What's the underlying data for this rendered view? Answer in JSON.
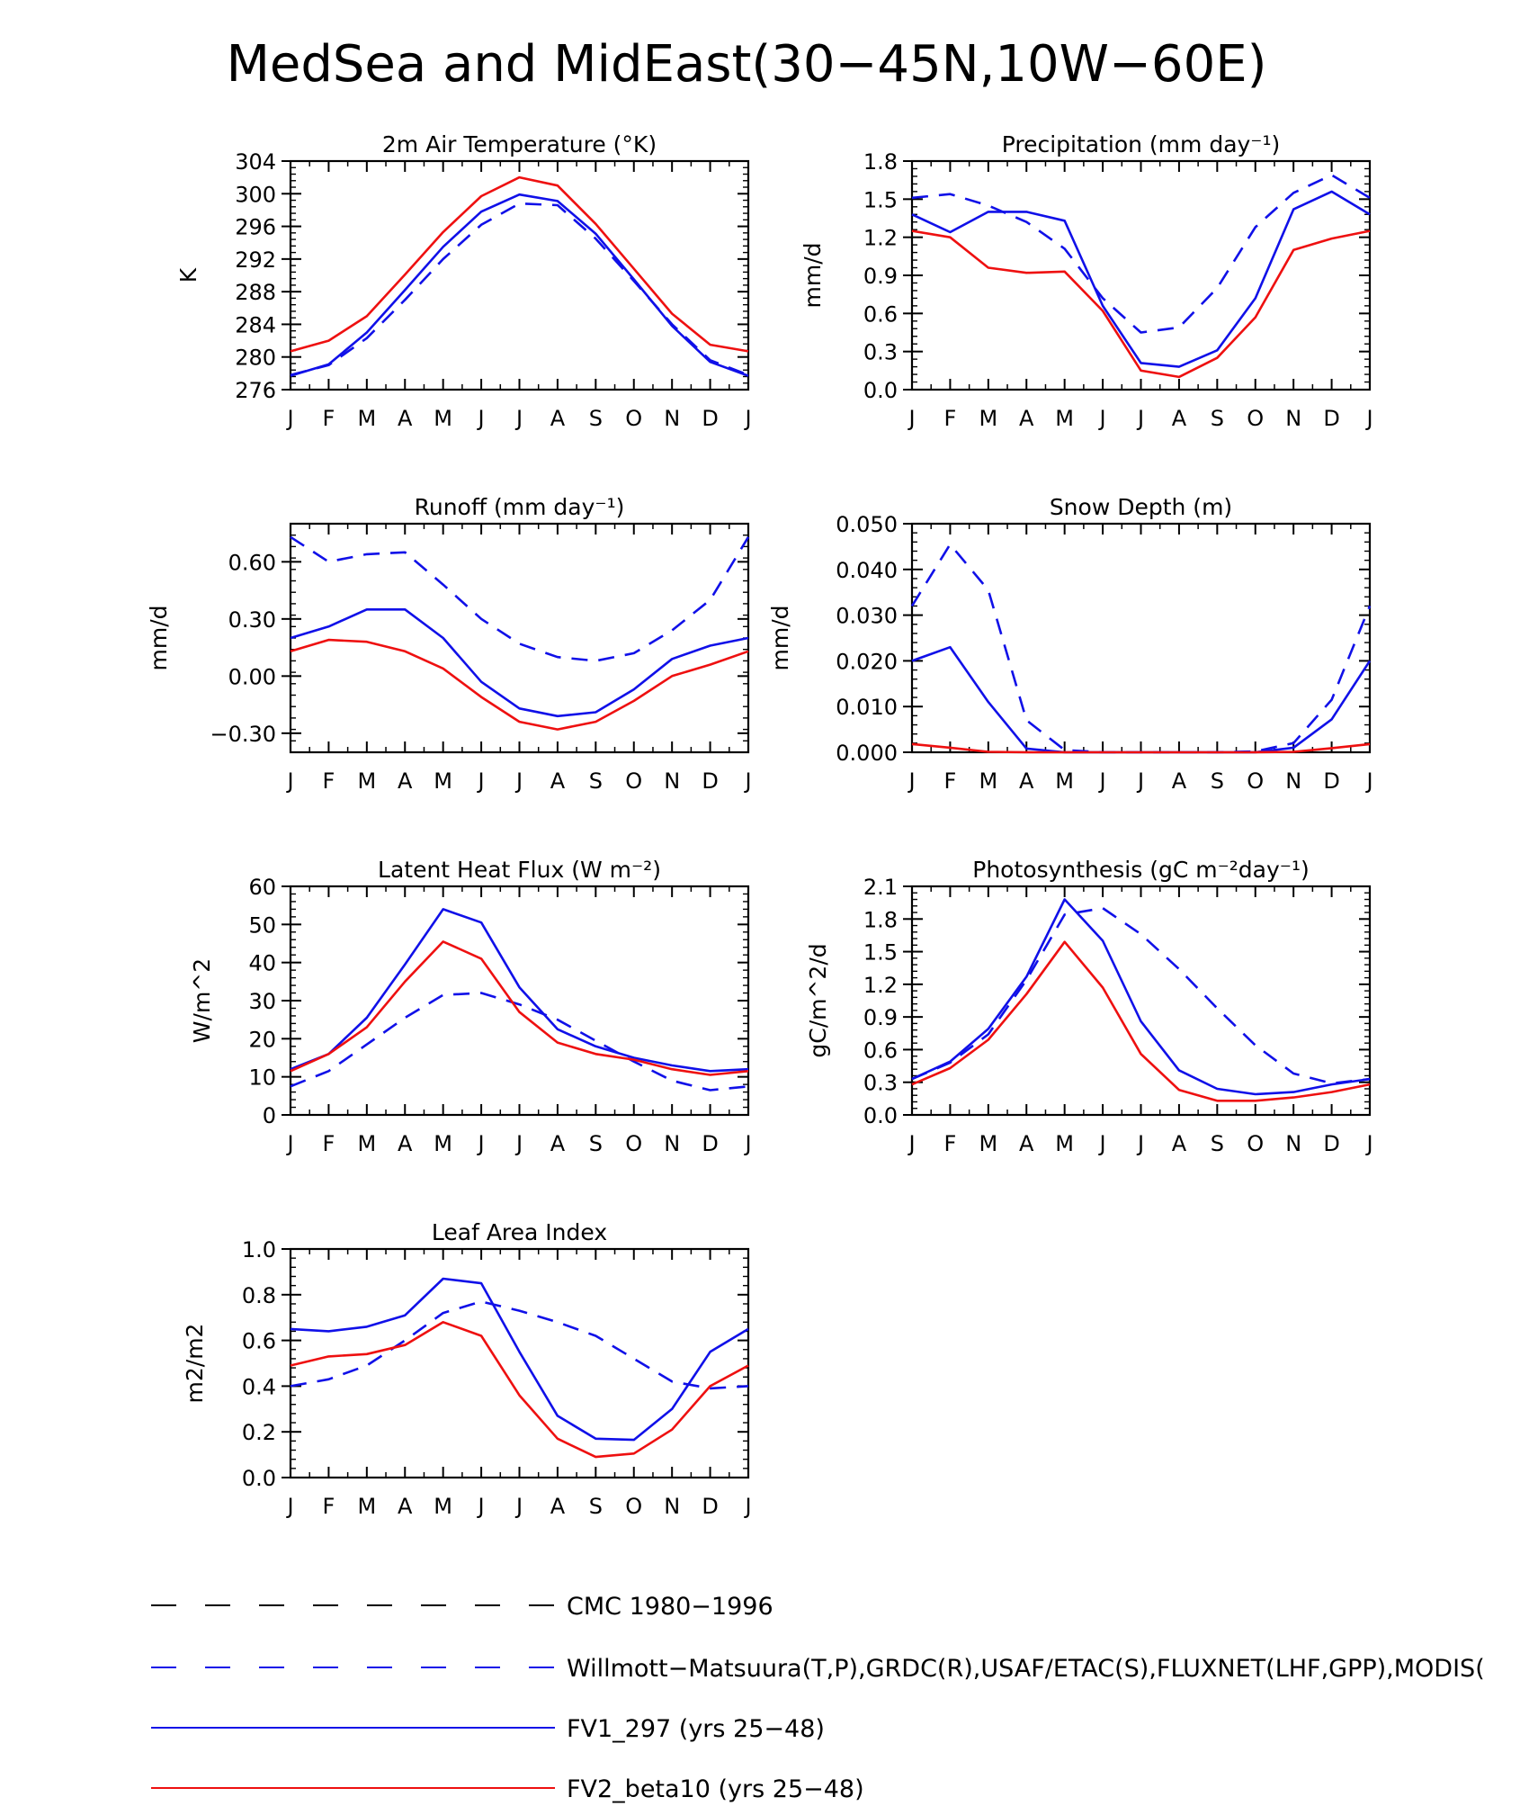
{
  "title": "MedSea and MidEast(30−45N,10W−60E)",
  "months": [
    "J",
    "F",
    "M",
    "A",
    "M",
    "J",
    "J",
    "A",
    "S",
    "O",
    "N",
    "D",
    "J"
  ],
  "colors": {
    "cmc": "#000000",
    "obs": "#1010e8",
    "fv1": "#1010e8",
    "fv2": "#ee1010"
  },
  "legend": [
    {
      "key": "cmc",
      "label": "CMC 1980−1996",
      "style": "dashed",
      "color": "#000000"
    },
    {
      "key": "obs",
      "label": "Willmott−Matsuura(T,P),GRDC(R),USAF/ETAC(S),FLUXNET(LHF,GPP),MODIS(",
      "style": "dashed",
      "color": "#1010e8"
    },
    {
      "key": "fv1",
      "label": "FV1_297 (yrs 25−48)",
      "style": "solid",
      "color": "#1010e8"
    },
    {
      "key": "fv2",
      "label": "FV2_beta10 (yrs 25−48)",
      "style": "solid",
      "color": "#ee1010"
    }
  ],
  "panels": [
    {
      "title": "2m Air Temperature (°K)",
      "ylabel": "K"
    },
    {
      "title": "Precipitation (mm day⁻¹)",
      "ylabel": "mm/d"
    },
    {
      "title": "Runoff (mm day⁻¹)",
      "ylabel": "mm/d"
    },
    {
      "title": "Snow Depth (m)",
      "ylabel": "mm/d"
    },
    {
      "title": "Latent Heat Flux (W m⁻²)",
      "ylabel": "W/m^2"
    },
    {
      "title": "Photosynthesis (gC m⁻²day⁻¹)",
      "ylabel": "gC/m^2/d"
    },
    {
      "title": "Leaf Area Index",
      "ylabel": "m2/m2"
    }
  ],
  "chart_data": [
    {
      "type": "line",
      "title": "2m Air Temperature (°K)",
      "ylabel": "K",
      "x": [
        "J",
        "F",
        "M",
        "A",
        "M",
        "J",
        "J",
        "A",
        "S",
        "O",
        "N",
        "D",
        "J"
      ],
      "ylim": [
        276,
        304
      ],
      "yticks": [
        "276",
        "280",
        "284",
        "288",
        "292",
        "296",
        "300",
        "304"
      ],
      "ytick_values": [
        276,
        280,
        284,
        288,
        292,
        296,
        300,
        304
      ],
      "series": [
        {
          "name": "obs",
          "style": "dashed",
          "color": "#1010e8",
          "values": [
            277.8,
            279.0,
            282.3,
            287.0,
            292.0,
            296.2,
            298.8,
            298.6,
            294.5,
            289.3,
            284.0,
            279.6,
            277.8
          ]
        },
        {
          "name": "fv1",
          "style": "solid",
          "color": "#1010e8",
          "values": [
            277.7,
            279.1,
            283.0,
            288.2,
            293.5,
            297.8,
            299.9,
            299.1,
            295.1,
            289.5,
            283.8,
            279.4,
            277.7
          ]
        },
        {
          "name": "fv2",
          "style": "solid",
          "color": "#ee1010",
          "values": [
            280.7,
            282.0,
            285.0,
            290.1,
            295.3,
            299.7,
            302.0,
            301.0,
            296.3,
            290.8,
            285.3,
            281.5,
            280.7
          ]
        }
      ]
    },
    {
      "type": "line",
      "title": "Precipitation (mm day⁻¹)",
      "ylabel": "mm/d",
      "x": [
        "J",
        "F",
        "M",
        "A",
        "M",
        "J",
        "J",
        "A",
        "S",
        "O",
        "N",
        "D",
        "J"
      ],
      "ylim": [
        0,
        1.8
      ],
      "yticks": [
        "0.0",
        "0.3",
        "0.6",
        "0.9",
        "1.2",
        "1.5",
        "1.8"
      ],
      "ytick_values": [
        0,
        0.3,
        0.6,
        0.9,
        1.2,
        1.5,
        1.8
      ],
      "series": [
        {
          "name": "obs",
          "style": "dashed",
          "color": "#1010e8",
          "values": [
            1.51,
            1.54,
            1.45,
            1.32,
            1.11,
            0.72,
            0.45,
            0.49,
            0.8,
            1.28,
            1.55,
            1.69,
            1.51
          ]
        },
        {
          "name": "fv1",
          "style": "solid",
          "color": "#1010e8",
          "values": [
            1.38,
            1.24,
            1.4,
            1.4,
            1.33,
            0.66,
            0.21,
            0.18,
            0.31,
            0.72,
            1.42,
            1.56,
            1.38
          ]
        },
        {
          "name": "fv2",
          "style": "solid",
          "color": "#ee1010",
          "values": [
            1.25,
            1.2,
            0.96,
            0.92,
            0.93,
            0.62,
            0.15,
            0.1,
            0.25,
            0.57,
            1.1,
            1.19,
            1.25
          ]
        }
      ]
    },
    {
      "type": "line",
      "title": "Runoff (mm day⁻¹)",
      "ylabel": "mm/d",
      "x": [
        "J",
        "F",
        "M",
        "A",
        "M",
        "J",
        "J",
        "A",
        "S",
        "O",
        "N",
        "D",
        "J"
      ],
      "ylim": [
        -0.4,
        0.8
      ],
      "yticks": [
        "−0.30",
        "0.00",
        "0.30",
        "0.60"
      ],
      "ytick_values": [
        -0.3,
        0.0,
        0.3,
        0.6
      ],
      "series": [
        {
          "name": "obs",
          "style": "dashed",
          "color": "#1010e8",
          "values": [
            0.73,
            0.6,
            0.64,
            0.65,
            0.48,
            0.3,
            0.17,
            0.1,
            0.08,
            0.12,
            0.24,
            0.4,
            0.73
          ]
        },
        {
          "name": "fv1",
          "style": "solid",
          "color": "#1010e8",
          "values": [
            0.2,
            0.26,
            0.35,
            0.35,
            0.2,
            -0.03,
            -0.17,
            -0.21,
            -0.19,
            -0.07,
            0.09,
            0.16,
            0.2
          ]
        },
        {
          "name": "fv2",
          "style": "solid",
          "color": "#ee1010",
          "values": [
            0.13,
            0.19,
            0.18,
            0.13,
            0.04,
            -0.11,
            -0.24,
            -0.28,
            -0.24,
            -0.13,
            0.0,
            0.06,
            0.13
          ]
        }
      ]
    },
    {
      "type": "line",
      "title": "Snow Depth (m)",
      "ylabel": "mm/d",
      "x": [
        "J",
        "F",
        "M",
        "A",
        "M",
        "J",
        "J",
        "A",
        "S",
        "O",
        "N",
        "D",
        "J"
      ],
      "ylim": [
        0,
        0.05
      ],
      "yticks": [
        "0.000",
        "0.010",
        "0.020",
        "0.030",
        "0.040",
        "0.050"
      ],
      "ytick_values": [
        0,
        0.01,
        0.02,
        0.03,
        0.04,
        0.05
      ],
      "series": [
        {
          "name": "obs",
          "style": "dashed",
          "color": "#1010e8",
          "values": [
            0.032,
            0.0455,
            0.0355,
            0.007,
            0.0005,
            0.0,
            0.0,
            0.0,
            0.0,
            0.0002,
            0.002,
            0.0115,
            0.032
          ]
        },
        {
          "name": "fv1",
          "style": "solid",
          "color": "#1010e8",
          "values": [
            0.02,
            0.023,
            0.011,
            0.0008,
            0.0,
            0.0,
            0.0,
            0.0,
            0.0,
            0.0,
            0.001,
            0.0072,
            0.02
          ]
        },
        {
          "name": "fv2",
          "style": "solid",
          "color": "#ee1010",
          "values": [
            0.0018,
            0.001,
            0.0001,
            0.0,
            0.0,
            0.0,
            0.0,
            0.0,
            0.0,
            0.0,
            0.0001,
            0.0009,
            0.0018
          ]
        }
      ]
    },
    {
      "type": "line",
      "title": "Latent Heat Flux (W m⁻²)",
      "ylabel": "W/m^2",
      "x": [
        "J",
        "F",
        "M",
        "A",
        "M",
        "J",
        "J",
        "A",
        "S",
        "O",
        "N",
        "D",
        "J"
      ],
      "ylim": [
        0,
        60
      ],
      "yticks": [
        "0",
        "10",
        "20",
        "30",
        "40",
        "50",
        "60"
      ],
      "ytick_values": [
        0,
        10,
        20,
        30,
        40,
        50,
        60
      ],
      "series": [
        {
          "name": "obs",
          "style": "dashed",
          "color": "#1010e8",
          "values": [
            7.5,
            11.5,
            18.5,
            25.5,
            31.5,
            32.0,
            29.0,
            25.0,
            19.5,
            14.0,
            9.0,
            6.5,
            7.5
          ]
        },
        {
          "name": "fv1",
          "style": "solid",
          "color": "#1010e8",
          "values": [
            12.0,
            16.0,
            25.5,
            39.5,
            54.0,
            50.5,
            33.5,
            22.5,
            18.0,
            15.0,
            13.0,
            11.5,
            12.0
          ]
        },
        {
          "name": "fv2",
          "style": "solid",
          "color": "#ee1010",
          "values": [
            11.5,
            16.0,
            23.0,
            35.0,
            45.5,
            41.0,
            27.0,
            19.0,
            16.0,
            14.5,
            12.0,
            10.5,
            11.5
          ]
        }
      ]
    },
    {
      "type": "line",
      "title": "Photosynthesis (gC m⁻²day⁻¹)",
      "ylabel": "gC/m^2/d",
      "x": [
        "J",
        "F",
        "M",
        "A",
        "M",
        "J",
        "J",
        "A",
        "S",
        "O",
        "N",
        "D",
        "J"
      ],
      "ylim": [
        0,
        2.1
      ],
      "yticks": [
        "0.0",
        "0.3",
        "0.6",
        "0.9",
        "1.2",
        "1.5",
        "1.8",
        "2.1"
      ],
      "ytick_values": [
        0,
        0.3,
        0.6,
        0.9,
        1.2,
        1.5,
        1.8,
        2.1
      ],
      "series": [
        {
          "name": "obs",
          "style": "dashed",
          "color": "#1010e8",
          "values": [
            0.33,
            0.48,
            0.74,
            1.24,
            1.84,
            1.9,
            1.66,
            1.34,
            0.98,
            0.64,
            0.38,
            0.29,
            0.33
          ]
        },
        {
          "name": "fv1",
          "style": "solid",
          "color": "#1010e8",
          "values": [
            0.33,
            0.49,
            0.79,
            1.27,
            1.98,
            1.6,
            0.86,
            0.41,
            0.24,
            0.19,
            0.21,
            0.28,
            0.33
          ]
        },
        {
          "name": "fv2",
          "style": "solid",
          "color": "#ee1010",
          "values": [
            0.28,
            0.43,
            0.69,
            1.11,
            1.59,
            1.17,
            0.56,
            0.23,
            0.13,
            0.13,
            0.16,
            0.21,
            0.28
          ]
        }
      ]
    },
    {
      "type": "line",
      "title": "Leaf Area Index",
      "ylabel": "m2/m2",
      "x": [
        "J",
        "F",
        "M",
        "A",
        "M",
        "J",
        "J",
        "A",
        "S",
        "O",
        "N",
        "D",
        "J"
      ],
      "ylim": [
        0,
        1.0
      ],
      "yticks": [
        "0.0",
        "0.2",
        "0.4",
        "0.6",
        "0.8",
        "1.0"
      ],
      "ytick_values": [
        0,
        0.2,
        0.4,
        0.6,
        0.8,
        1.0
      ],
      "series": [
        {
          "name": "obs",
          "style": "dashed",
          "color": "#1010e8",
          "values": [
            0.4,
            0.43,
            0.49,
            0.6,
            0.72,
            0.77,
            0.73,
            0.68,
            0.62,
            0.52,
            0.42,
            0.39,
            0.4
          ]
        },
        {
          "name": "fv1",
          "style": "solid",
          "color": "#1010e8",
          "values": [
            0.65,
            0.64,
            0.66,
            0.71,
            0.87,
            0.85,
            0.55,
            0.27,
            0.17,
            0.165,
            0.3,
            0.55,
            0.65
          ]
        },
        {
          "name": "fv2",
          "style": "solid",
          "color": "#ee1010",
          "values": [
            0.49,
            0.53,
            0.54,
            0.58,
            0.68,
            0.62,
            0.36,
            0.17,
            0.09,
            0.105,
            0.21,
            0.4,
            0.49
          ]
        }
      ]
    }
  ]
}
